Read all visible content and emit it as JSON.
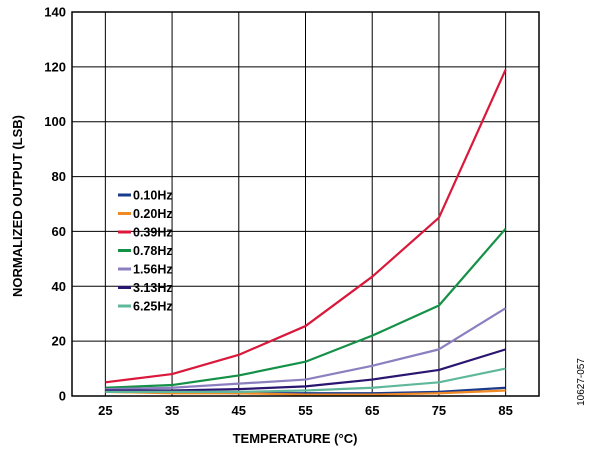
{
  "chart_data": {
    "type": "line",
    "title": "",
    "xlabel": "TEMPERATURE (°C)",
    "ylabel": "NORMALIZED OUTPUT (LSB)",
    "x": [
      25,
      35,
      45,
      55,
      65,
      75,
      85
    ],
    "xlim": [
      20,
      90
    ],
    "ylim": [
      0,
      140
    ],
    "xticks": [
      25,
      35,
      45,
      55,
      65,
      75,
      85
    ],
    "yticks": [
      0,
      20,
      40,
      60,
      80,
      100,
      120,
      140
    ],
    "grid": true,
    "legend_position": "left",
    "series": [
      {
        "name": "0.10Hz",
        "color": "#1a3a8c",
        "values": [
          2,
          1.5,
          1,
          1,
          1,
          1.5,
          3
        ]
      },
      {
        "name": "0.20Hz",
        "color": "#f08a24",
        "values": [
          1.5,
          1,
          1,
          0.5,
          0.5,
          1,
          2
        ]
      },
      {
        "name": "0.39Hz",
        "color": "#d9183b",
        "values": [
          5,
          8,
          15,
          25.5,
          43.5,
          65,
          119
        ]
      },
      {
        "name": "0.78Hz",
        "color": "#149146",
        "values": [
          3,
          4,
          7.5,
          12.5,
          22,
          33,
          61
        ]
      },
      {
        "name": "1.56Hz",
        "color": "#8c7fc0",
        "values": [
          2.5,
          3,
          4.5,
          6,
          11,
          17,
          32
        ]
      },
      {
        "name": "3.13Hz",
        "color": "#2a1670",
        "values": [
          2,
          2,
          2.5,
          3.5,
          6,
          9.5,
          17
        ]
      },
      {
        "name": "6.25Hz",
        "color": "#5fb89a",
        "values": [
          1.5,
          1.5,
          1.5,
          2,
          3,
          5,
          10
        ]
      }
    ]
  },
  "figure_id": "10627-057"
}
